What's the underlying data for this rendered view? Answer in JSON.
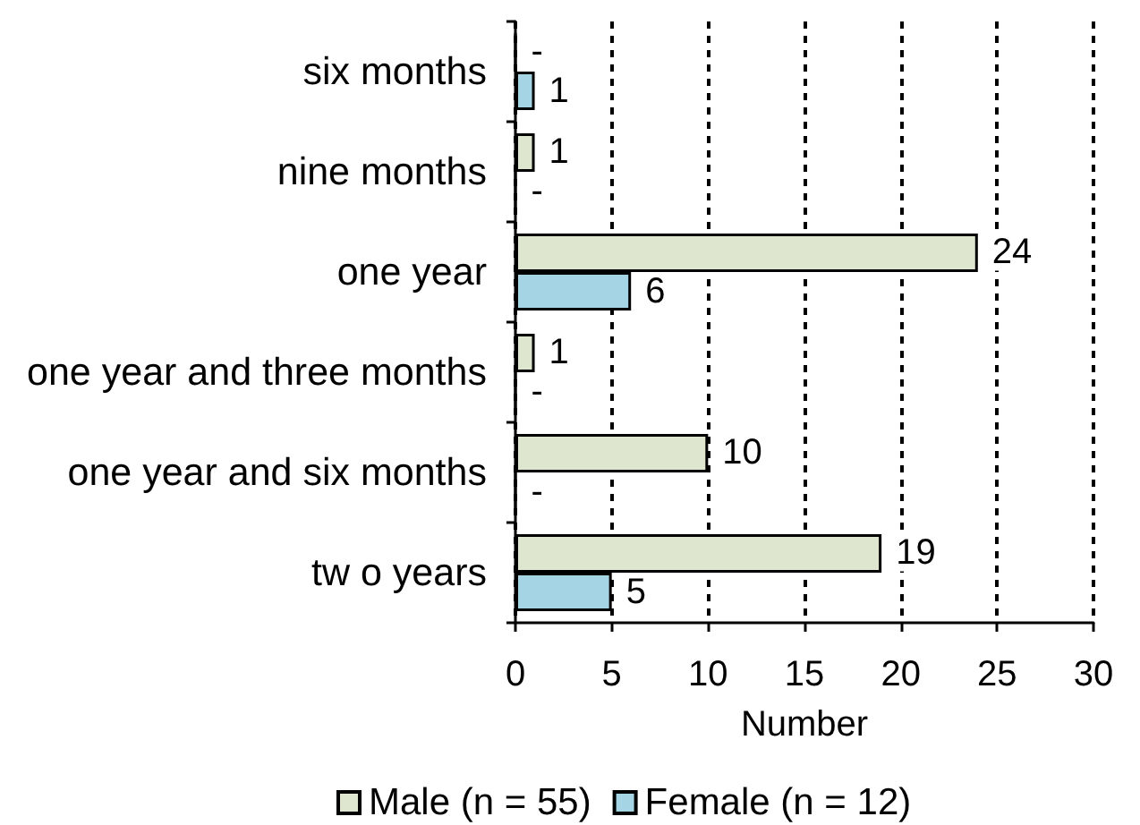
{
  "chart_data": {
    "type": "bar",
    "orientation": "horizontal",
    "xlabel": "Number",
    "categories": [
      "six months",
      "nine months",
      "one year",
      "one year and three months",
      "one year and six months",
      "tw o years"
    ],
    "series": [
      {
        "name": "Male (n = 55)",
        "color": "#dfe6cf",
        "values": [
          0,
          1,
          24,
          1,
          10,
          19
        ],
        "value_labels": [
          "-",
          "1",
          "24",
          "1",
          "10",
          "19"
        ]
      },
      {
        "name": "Female (n = 12)",
        "color": "#a5d5e4",
        "values": [
          1,
          0,
          6,
          0,
          0,
          5
        ],
        "value_labels": [
          "1",
          "-",
          "6",
          "-",
          "-",
          "5"
        ]
      }
    ],
    "xlim": [
      0,
      30
    ],
    "xticks": [
      0,
      5,
      10,
      15,
      20,
      25,
      30
    ],
    "grid": "x",
    "legend": "bottom"
  }
}
